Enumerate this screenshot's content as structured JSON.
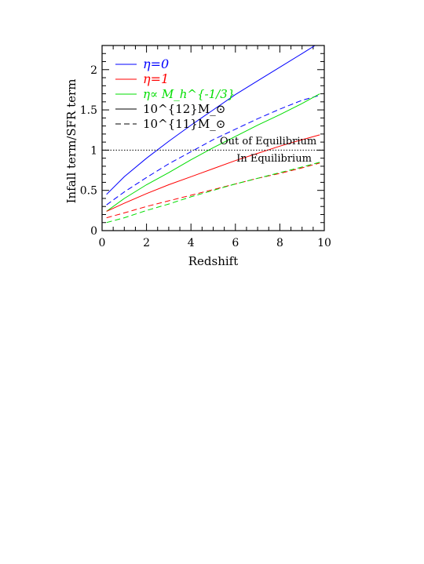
{
  "chart_data": {
    "type": "line",
    "xlabel": "Redshift",
    "ylabel": "Infall term/SFR term",
    "xlim": [
      0,
      10
    ],
    "ylim": [
      0,
      2.3
    ],
    "xticks": [
      0,
      2,
      4,
      6,
      8,
      10
    ],
    "yticks": [
      0,
      0.5,
      1,
      1.5,
      2
    ],
    "xtick_labels": [
      "0",
      "2",
      "4",
      "6",
      "8",
      "10"
    ],
    "ytick_labels": [
      "0",
      "0.5",
      "1",
      "1.5",
      "2"
    ],
    "grid": false,
    "legend_position": "top-left",
    "legend": [
      {
        "label": "η=0",
        "color": "#0000ff",
        "dash": false
      },
      {
        "label": "η=1",
        "color": "#ff0000",
        "dash": false
      },
      {
        "label": "η∝ M_h^{-1/3}",
        "color": "#00dd00",
        "dash": false
      },
      {
        "label": "10^{12}M_⊙",
        "color": "#000000",
        "dash": false
      },
      {
        "label": "10^{11}M_⊙",
        "color": "#000000",
        "dash": true
      }
    ],
    "reference_line": {
      "y": 1,
      "style": "dotted",
      "color": "#000000"
    },
    "annotations": [
      {
        "text": "Out of Equilibrium",
        "x": 5.3,
        "y": 1.07
      },
      {
        "text": "In Equilibrium",
        "x": 6.05,
        "y": 0.86
      }
    ],
    "series": [
      {
        "eta": "η=0",
        "mass": "10^{12}M_⊙",
        "color": "#0000ff",
        "dash": false,
        "x": [
          0.2,
          1,
          2,
          3,
          4,
          5,
          6,
          7,
          8,
          9,
          9.7
        ],
        "y": [
          0.45,
          0.67,
          0.9,
          1.11,
          1.31,
          1.5,
          1.69,
          1.86,
          2.03,
          2.2,
          2.32
        ]
      },
      {
        "eta": "η=0",
        "mass": "10^{11}M_⊙",
        "color": "#0000ff",
        "dash": true,
        "x": [
          0.2,
          1,
          2,
          3,
          4,
          5,
          6,
          7,
          8,
          9,
          9.8
        ],
        "y": [
          0.32,
          0.48,
          0.66,
          0.83,
          0.98,
          1.13,
          1.26,
          1.39,
          1.51,
          1.62,
          1.68
        ]
      },
      {
        "eta": "η∝ M_h^{-1/3}",
        "mass": "10^{12}M_⊙",
        "color": "#00dd00",
        "dash": false,
        "x": [
          0.2,
          1,
          2,
          3,
          4,
          5,
          6,
          7,
          8,
          9,
          9.8
        ],
        "y": [
          0.24,
          0.4,
          0.57,
          0.72,
          0.88,
          1.03,
          1.17,
          1.31,
          1.44,
          1.58,
          1.7
        ]
      },
      {
        "eta": "η=1",
        "mass": "10^{12}M_⊙",
        "color": "#ff0000",
        "dash": false,
        "x": [
          0.2,
          1,
          2,
          3,
          4,
          5,
          6,
          7,
          8,
          9,
          9.8
        ],
        "y": [
          0.24,
          0.34,
          0.46,
          0.57,
          0.67,
          0.77,
          0.87,
          0.96,
          1.05,
          1.13,
          1.19
        ]
      },
      {
        "eta": "η=1",
        "mass": "10^{11}M_⊙",
        "color": "#ff0000",
        "dash": true,
        "x": [
          0.2,
          1,
          2,
          3,
          4,
          5,
          6,
          7,
          8,
          9,
          9.8
        ],
        "y": [
          0.16,
          0.22,
          0.3,
          0.37,
          0.44,
          0.51,
          0.58,
          0.65,
          0.71,
          0.78,
          0.84
        ]
      },
      {
        "eta": "η∝ M_h^{-1/3}",
        "mass": "10^{11}M_⊙",
        "color": "#00dd00",
        "dash": true,
        "x": [
          0.2,
          1,
          2,
          3,
          4,
          5,
          6,
          7,
          8,
          9,
          9.8
        ],
        "y": [
          0.1,
          0.16,
          0.25,
          0.33,
          0.42,
          0.5,
          0.58,
          0.65,
          0.72,
          0.79,
          0.85
        ]
      }
    ]
  }
}
